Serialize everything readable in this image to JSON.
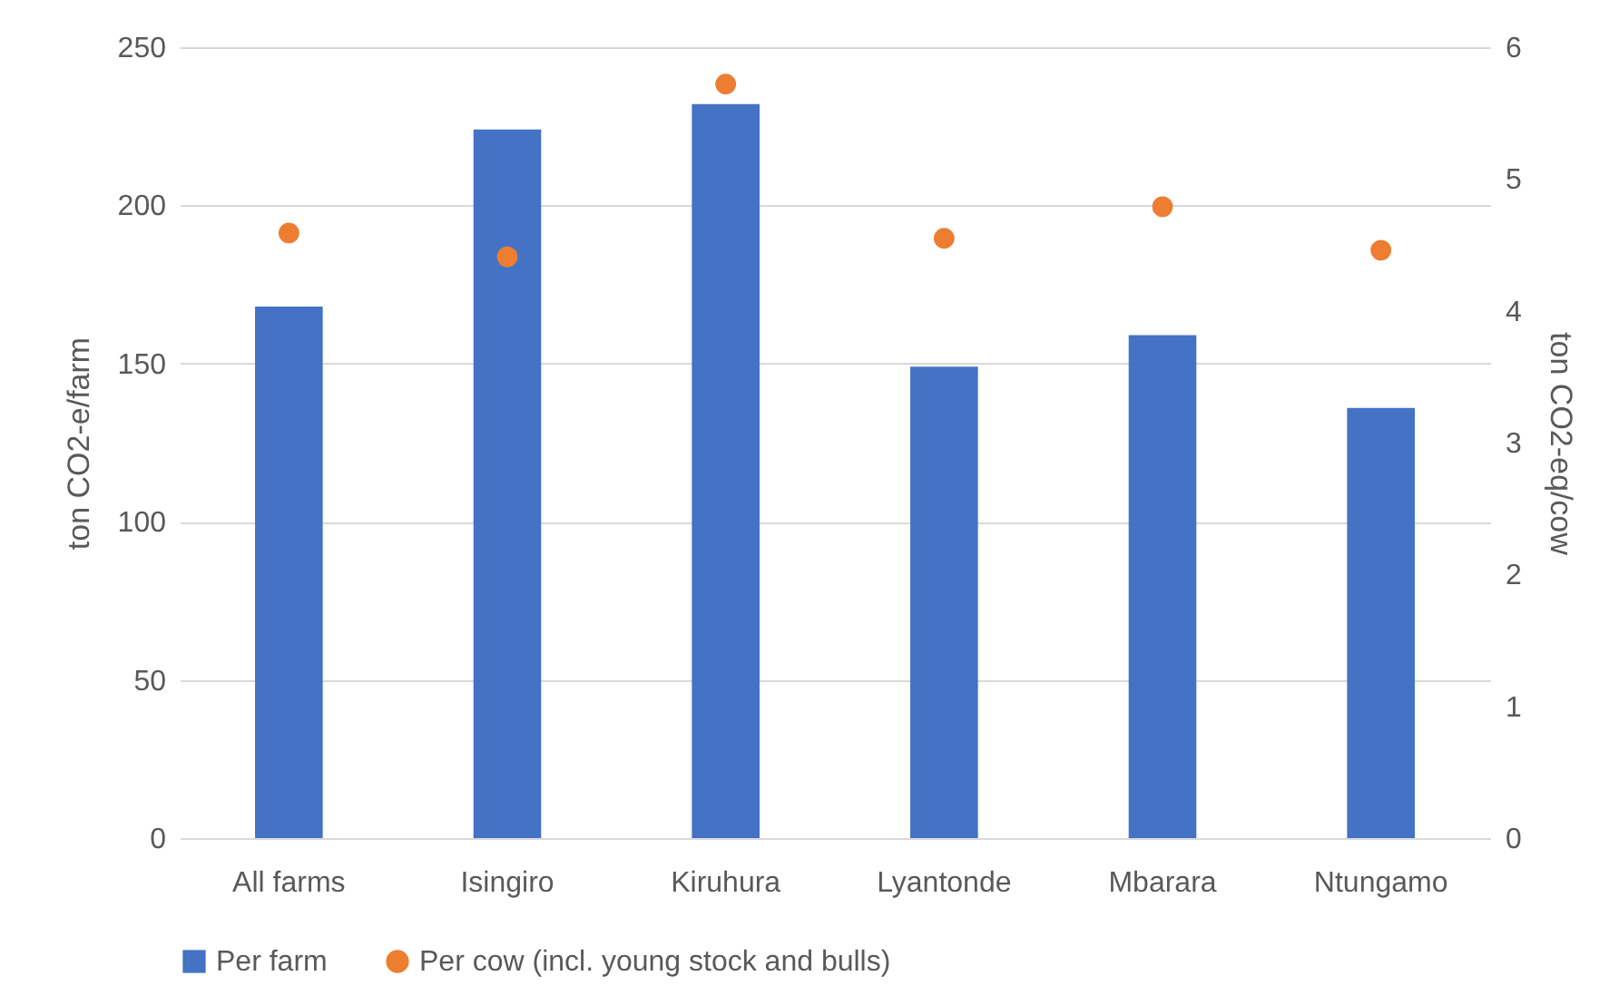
{
  "chart_data": {
    "type": "bar",
    "ylabel": "ton CO2-e/farm",
    "y2label": "ton CO2-eq/cow",
    "categories": [
      "All farms",
      "Isingiro",
      "Kiruhura",
      "Lyantonde",
      "Mbarara",
      "Ntungamo"
    ],
    "series": [
      {
        "name": "Per farm",
        "color": "#4472c4",
        "values": [
          168,
          224,
          232,
          149,
          159,
          136
        ]
      },
      {
        "name": "Per cow (incl. young stock and bulls)",
        "type": "scatter",
        "axis": "y2",
        "color": "#ed7d31",
        "values": [
          4.59,
          4.41,
          5.72,
          4.55,
          4.79,
          4.46
        ]
      }
    ],
    "ylim": [
      0,
      250
    ],
    "yticks": [
      0,
      50,
      100,
      150,
      200,
      250
    ],
    "y2lim": [
      0,
      6
    ],
    "y2ticks": [
      0,
      1,
      2,
      3,
      4,
      5,
      6
    ],
    "grid": "y",
    "legend": "bottom",
    "marker": "circle"
  }
}
